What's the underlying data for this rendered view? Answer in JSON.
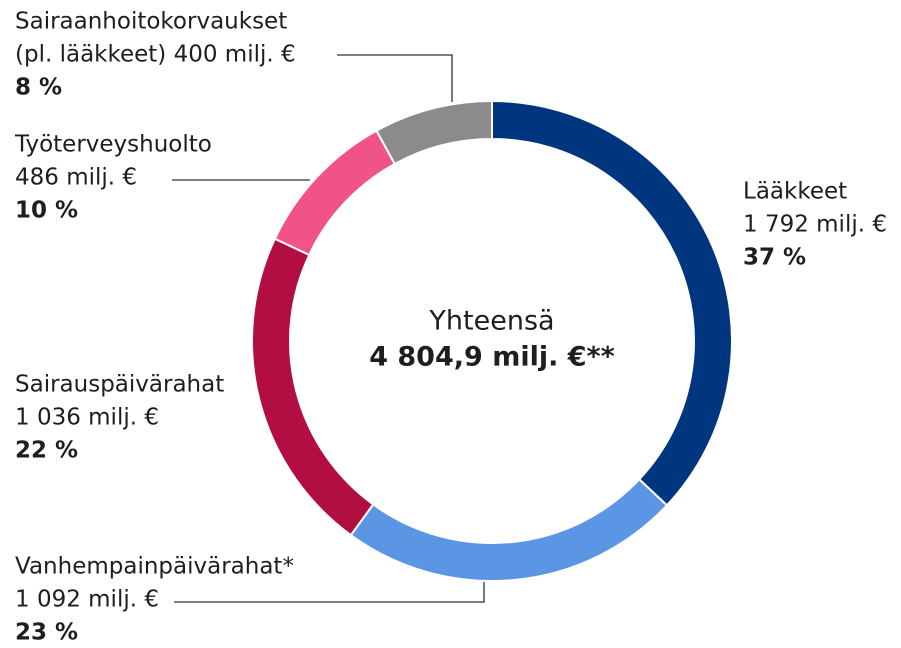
{
  "chart_data": {
    "type": "donut",
    "center_title": "Yhteensä",
    "center_total": "4 804,9 milj. €**",
    "categories": [
      "Lääkkeet",
      "Vanhempainpäivärahat*",
      "Sairauspäivärahat",
      "Työterveyshuolto",
      "Sairaanhoitokorvaukset"
    ],
    "amount_labels": [
      "1 792 milj. €",
      "1 092 milj. €",
      "1 036 milj. €",
      "486 milj. €",
      "(pl. lääkkeet) 400 milj. €"
    ],
    "values": [
      37,
      23,
      22,
      10,
      8
    ],
    "value_labels": [
      "37 %",
      "23 %",
      "22 %",
      "10 %",
      "8 %"
    ],
    "colors": [
      "#00367f",
      "#5a96e3",
      "#b30e42",
      "#f0528a",
      "#8b8b8b"
    ]
  }
}
